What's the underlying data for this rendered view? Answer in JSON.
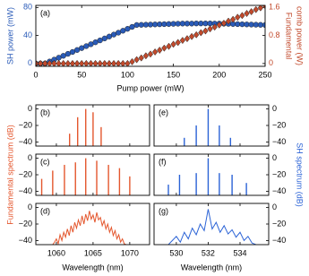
{
  "chart_data": [
    {
      "type": "scatter",
      "panel_label": "(a)",
      "xlabel": "Pump power (mW)",
      "ylabel": "SH power (mW)",
      "ylabel2": [
        "Fundamental",
        "comb power (W)"
      ],
      "x": [
        0,
        5,
        10,
        15,
        20,
        25,
        30,
        35,
        40,
        45,
        50,
        55,
        60,
        65,
        70,
        75,
        80,
        85,
        90,
        95,
        100,
        105,
        110,
        115,
        120,
        125,
        130,
        135,
        140,
        145,
        150,
        155,
        160,
        165,
        170,
        175,
        180,
        185,
        190,
        195,
        200,
        205,
        210,
        215,
        220,
        225,
        230,
        235,
        240,
        245,
        250
      ],
      "xlim": [
        0,
        250
      ],
      "xticks": [
        0,
        50,
        100,
        150,
        200,
        250
      ],
      "ylim": [
        -4,
        83
      ],
      "yticks": [
        0,
        40,
        80
      ],
      "y2lim": [
        -0.08,
        1.66
      ],
      "y2ticks": [
        0,
        0.8,
        1.6
      ],
      "series": [
        {
          "color": "#2a5bb8",
          "marker": "circle",
          "values": [
            0,
            0,
            0,
            2.8,
            5.5,
            8.3,
            11,
            13.8,
            16.5,
            19.3,
            22,
            24.8,
            27.5,
            30.3,
            33,
            35.8,
            38.5,
            41.3,
            44,
            46.8,
            49.5,
            52.3,
            55,
            55.2,
            55.4,
            55.6,
            55.8,
            56,
            56.2,
            56.4,
            56.6,
            56.8,
            57,
            57,
            57,
            57.2,
            57.2,
            57.2,
            57.2,
            57,
            57,
            56.8,
            56.6,
            56.4,
            56.2,
            56,
            55.8,
            55.6,
            55.4,
            55.2,
            55
          ]
        },
        {
          "color": "#c24a2c",
          "marker": "diamond",
          "axis": "y2",
          "values": [
            0,
            0,
            0,
            0,
            0,
            0,
            0,
            0,
            0,
            0,
            0,
            0,
            0,
            0,
            0,
            0,
            0,
            0,
            0,
            0,
            0,
            0.05,
            0.11,
            0.16,
            0.22,
            0.27,
            0.33,
            0.38,
            0.44,
            0.49,
            0.55,
            0.6,
            0.66,
            0.71,
            0.77,
            0.82,
            0.88,
            0.93,
            0.99,
            1.04,
            1.1,
            1.15,
            1.21,
            1.26,
            1.32,
            1.37,
            1.43,
            1.48,
            1.54,
            1.59,
            1.65
          ]
        }
      ]
    },
    {
      "type": "stem",
      "panel_label": "(b)",
      "color": "#e4572e",
      "x": [
        1061.8,
        1062.9,
        1064.0,
        1065.0,
        1066.1
      ],
      "values": [
        -30,
        -10,
        0,
        -4,
        -22
      ],
      "xlim": [
        1057.2,
        1072.7
      ],
      "xticks": [
        1060,
        1065,
        1070
      ],
      "ylim": [
        -45,
        5
      ],
      "yticks": [
        {
          "value": 0,
          "label": "0"
        },
        {
          "value": -20,
          "label": "−20"
        },
        {
          "value": -40,
          "label": "−40"
        }
      ]
    },
    {
      "type": "stem",
      "panel_label": "(c)",
      "color": "#e4572e",
      "ylabel": "Fundamental spectrum (dB)",
      "x": [
        1058.0,
        1059.5,
        1061.1,
        1062.6,
        1064.0,
        1065.5,
        1067.1,
        1068.6,
        1070.0
      ],
      "values": [
        -25,
        -15,
        -8,
        -5,
        0,
        -3,
        -8,
        -12,
        -22
      ],
      "xlim": [
        1057.2,
        1072.7
      ],
      "xticks": [
        1060,
        1065,
        1070
      ],
      "ylim": [
        -45,
        5
      ],
      "yticks": [
        {
          "value": 0,
          "label": "0"
        },
        {
          "value": -20,
          "label": "−20"
        },
        {
          "value": -40,
          "label": "−40"
        }
      ]
    },
    {
      "type": "line",
      "panel_label": "(d)",
      "color": "#e4572e",
      "xlabel": "Wavelength (nm)",
      "x": [
        1059.5,
        1059.75,
        1060,
        1060.25,
        1060.5,
        1060.75,
        1061,
        1061.25,
        1061.5,
        1061.75,
        1062,
        1062.25,
        1062.5,
        1062.75,
        1063,
        1063.25,
        1063.5,
        1063.75,
        1064,
        1064.25,
        1064.5,
        1064.75,
        1065,
        1065.25,
        1065.5,
        1065.75,
        1066,
        1066.25,
        1066.5,
        1066.75,
        1067,
        1067.25,
        1067.5,
        1067.75,
        1068,
        1068.25,
        1068.5,
        1068.75,
        1069,
        1069.25,
        1069.5
      ],
      "values": [
        -45,
        -42,
        -38,
        -44,
        -33,
        -40,
        -30,
        -36,
        -26,
        -34,
        -22,
        -30,
        -18,
        -25,
        -15,
        -22,
        -10,
        -20,
        -8,
        -16,
        -4,
        -14,
        -9,
        -18,
        -6,
        -15,
        -12,
        -22,
        -16,
        -26,
        -20,
        -30,
        -24,
        -34,
        -28,
        -38,
        -33,
        -42,
        -38,
        -44,
        -45
      ],
      "xlim": [
        1057.2,
        1072.7
      ],
      "xticks": [
        1060,
        1065,
        1070
      ],
      "ylim": [
        -45,
        5
      ],
      "yticks": [
        {
          "value": 0,
          "label": "0"
        },
        {
          "value": -20,
          "label": "−20"
        },
        {
          "value": -40,
          "label": "−40"
        }
      ]
    },
    {
      "type": "stem",
      "panel_label": "(e)",
      "color": "#2b63d6",
      "x": [
        530.5,
        531.25,
        532.0,
        532.7,
        533.4
      ],
      "values": [
        -35,
        -20,
        0,
        -20,
        -35
      ],
      "xlim": [
        528.6,
        535.8
      ],
      "xticks": [
        530,
        532,
        534
      ],
      "ylim": [
        -45,
        5
      ],
      "yticks": [
        {
          "value": 0,
          "label": "0"
        },
        {
          "value": -20,
          "label": "−20"
        },
        {
          "value": -40,
          "label": "−40"
        }
      ]
    },
    {
      "type": "stem",
      "panel_label": "(f)",
      "color": "#2b63d6",
      "ylabel": "SH spectrum (dB)",
      "x": [
        529.5,
        530.2,
        531.25,
        532.0,
        532.7,
        533.5,
        534.4
      ],
      "values": [
        -32,
        -20,
        -18,
        0,
        -18,
        -20,
        -30
      ],
      "xlim": [
        528.6,
        535.8
      ],
      "xticks": [
        530,
        532,
        534
      ],
      "ylim": [
        -45,
        5
      ],
      "yticks": [
        {
          "value": 0,
          "label": "0"
        },
        {
          "value": -20,
          "label": "−20"
        },
        {
          "value": -40,
          "label": "−40"
        }
      ]
    },
    {
      "type": "line",
      "panel_label": "(g)",
      "color": "#2b63d6",
      "xlabel": "Wavelength (nm)",
      "x": [
        529.5,
        529.75,
        530,
        530.25,
        530.5,
        530.75,
        531,
        531.25,
        531.5,
        531.75,
        532,
        532.25,
        532.5,
        532.75,
        533,
        533.25,
        533.5,
        533.75,
        534,
        534.25,
        534.5,
        534.75,
        535
      ],
      "values": [
        -45,
        -40,
        -35,
        -42,
        -30,
        -38,
        -25,
        -33,
        -20,
        -28,
        -2,
        -26,
        -18,
        -30,
        -22,
        -32,
        -27,
        -36,
        -30,
        -40,
        -35,
        -43,
        -45
      ],
      "xlim": [
        528.6,
        535.8
      ],
      "xticks": [
        530,
        532,
        534
      ],
      "ylim": [
        -45,
        5
      ],
      "yticks": [
        {
          "value": 0,
          "label": "0"
        },
        {
          "value": -20,
          "label": "−20"
        },
        {
          "value": -40,
          "label": "−40"
        }
      ]
    }
  ]
}
